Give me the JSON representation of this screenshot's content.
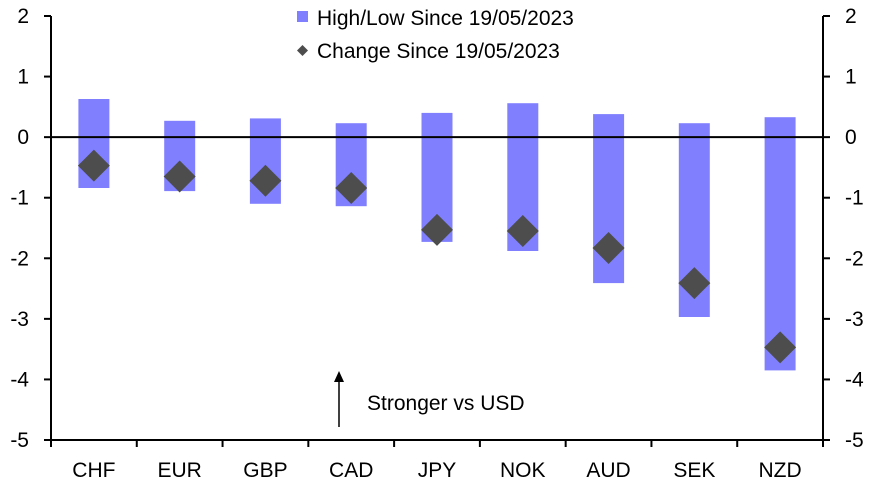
{
  "chart_data": {
    "type": "bar",
    "title": "",
    "xlabel": "",
    "ylabel": "",
    "ylim": [
      -5,
      2
    ],
    "yticks": [
      2,
      1,
      0,
      -1,
      -2,
      -3,
      -4,
      -5
    ],
    "y_axis_right": true,
    "grid": false,
    "legend_position": "top-center",
    "categories": [
      "CHF",
      "EUR",
      "GBP",
      "CAD",
      "JPY",
      "NOK",
      "AUD",
      "SEK",
      "NZD"
    ],
    "series": [
      {
        "name": "High/Low Since 19/05/2023",
        "kind": "floating-bar",
        "high": [
          0.63,
          0.27,
          0.31,
          0.23,
          0.4,
          0.56,
          0.38,
          0.23,
          0.33
        ],
        "low": [
          -0.84,
          -0.89,
          -1.1,
          -1.14,
          -1.73,
          -1.88,
          -2.41,
          -2.97,
          -3.85
        ],
        "color": "#8080ff"
      },
      {
        "name": "Change Since 19/05/2023",
        "kind": "marker-diamond",
        "values": [
          -0.47,
          -0.65,
          -0.72,
          -0.84,
          -1.53,
          -1.55,
          -1.83,
          -2.41,
          -3.47
        ],
        "color": "#4d4d4d"
      }
    ],
    "annotations": [
      {
        "text": "Stronger vs USD",
        "arrow": "up"
      }
    ]
  }
}
